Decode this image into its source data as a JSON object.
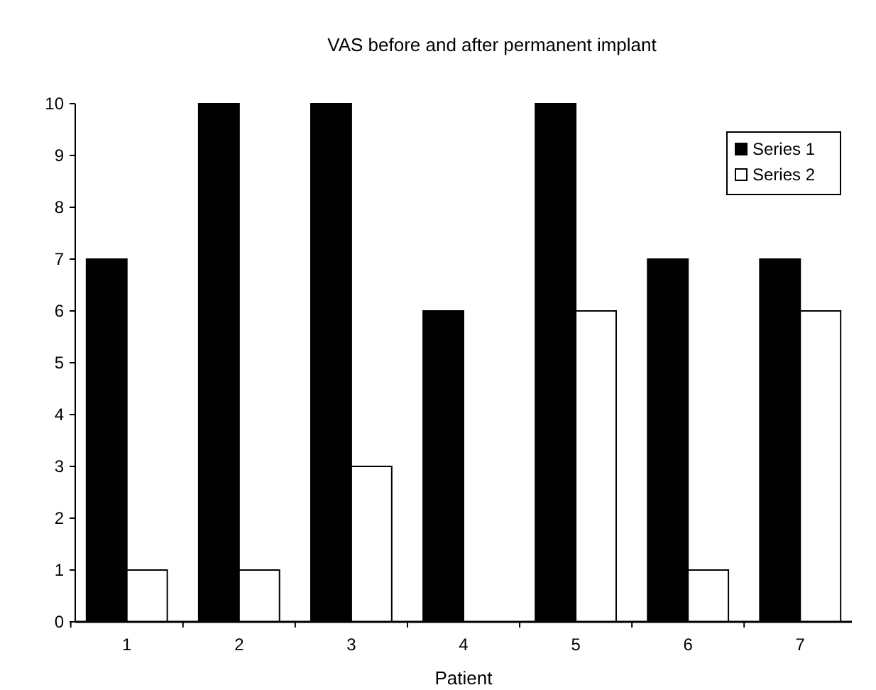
{
  "chart_data": {
    "type": "bar",
    "title": "VAS before and after permanent implant",
    "xlabel": "Patient",
    "categories": [
      "1",
      "2",
      "3",
      "4",
      "5",
      "6",
      "7"
    ],
    "series": [
      {
        "name": "Series 1",
        "color": "#000000",
        "values": [
          7,
          10,
          10,
          6,
          10,
          7,
          7
        ]
      },
      {
        "name": "Series 2",
        "color": "#ffffff",
        "values": [
          1,
          1,
          3,
          0,
          6,
          1,
          6
        ]
      }
    ],
    "ylim": [
      0,
      10
    ],
    "yticks": [
      0,
      1,
      2,
      3,
      4,
      5,
      6,
      7,
      8,
      9,
      10
    ],
    "grid": false,
    "legend": "top right"
  }
}
